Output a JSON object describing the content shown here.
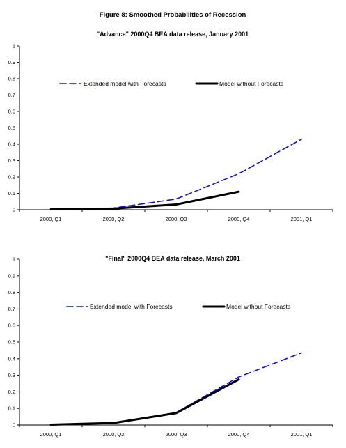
{
  "figure_title": "Figure 8: Smoothed Probabilities of Recession",
  "chart_data": [
    {
      "type": "line",
      "title": "\"Advance\" 2000Q4 BEA data release, January 2001",
      "xlabel": "",
      "ylabel": "",
      "categories": [
        "2000, Q1",
        "2000, Q2",
        "2000, Q3",
        "2000, Q4",
        "2001, Q1"
      ],
      "ylim": [
        0,
        1
      ],
      "yticks": [
        "0",
        "0.1",
        "0.2",
        "0.3",
        "0.4",
        "0.5",
        "0.6",
        "0.7",
        "0.8",
        "0.9",
        "1"
      ],
      "grid": false,
      "legend": "upper-middle",
      "series": [
        {
          "name": "Extended model with Forecasts",
          "color": "#1010c8",
          "style": "dashed",
          "values": [
            0.002,
            0.01,
            0.065,
            0.22,
            0.43
          ]
        },
        {
          "name": "Model without Forecasts",
          "color": "#000000",
          "style": "solid",
          "values": [
            0.002,
            0.007,
            0.032,
            0.11,
            null
          ]
        }
      ]
    },
    {
      "type": "line",
      "title": "\"Final\" 2000Q4 BEA data release, March 2001",
      "xlabel": "",
      "ylabel": "",
      "categories": [
        "2000, Q1",
        "2000, Q2",
        "2000, Q3",
        "2000, Q4",
        "2001, Q1"
      ],
      "ylim": [
        0,
        1
      ],
      "yticks": [
        "0",
        "0.1",
        "0.2",
        "0.3",
        "0.4",
        "0.5",
        "0.6",
        "0.7",
        "0.8",
        "0.9",
        "1"
      ],
      "grid": false,
      "legend": "upper-middle",
      "series": [
        {
          "name": "Extended model with Forecasts",
          "color": "#1010c8",
          "style": "dashed",
          "values": [
            0.002,
            0.012,
            0.075,
            0.29,
            0.435
          ]
        },
        {
          "name": "Model without Forecasts",
          "color": "#000000",
          "style": "solid",
          "values": [
            0.002,
            0.012,
            0.072,
            0.275,
            null
          ]
        }
      ]
    }
  ]
}
